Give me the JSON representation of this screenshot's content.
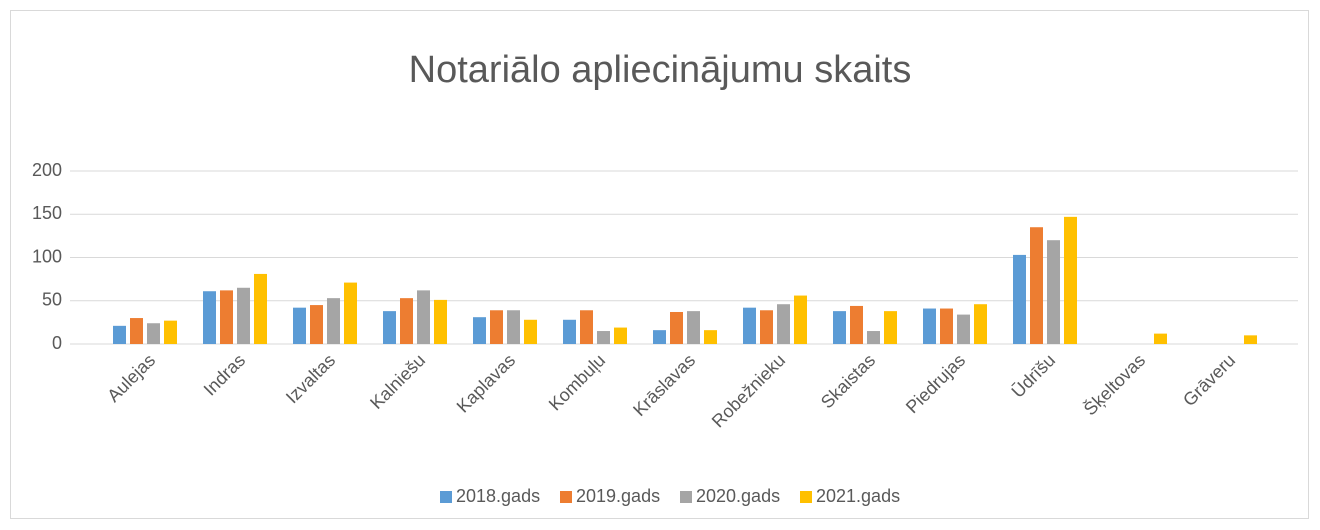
{
  "chart_data": {
    "type": "bar",
    "title": "Notariālo apliecinājumu skaits",
    "categories": [
      "Aulejas",
      "Indras",
      "Izvaltas",
      "Kalniešu",
      "Kaplavas",
      "Kombuļu",
      "Krāslavas",
      "Robežnieku",
      "Skaistas",
      "Piedrujas",
      "Ūdrīšu",
      "Šķeltovas",
      "Grāveru"
    ],
    "series": [
      {
        "name": "2018.gads",
        "color": "#5b9bd5",
        "values": [
          21,
          61,
          42,
          38,
          31,
          28,
          16,
          42,
          38,
          41,
          103,
          null,
          null
        ]
      },
      {
        "name": "2019.gads",
        "color": "#ed7d31",
        "values": [
          30,
          62,
          45,
          53,
          39,
          39,
          37,
          39,
          44,
          41,
          135,
          null,
          null
        ]
      },
      {
        "name": "2020.gads",
        "color": "#a5a5a5",
        "values": [
          24,
          65,
          53,
          62,
          39,
          15,
          38,
          46,
          15,
          34,
          120,
          null,
          null
        ]
      },
      {
        "name": "2021.gads",
        "color": "#ffc000",
        "values": [
          27,
          81,
          71,
          51,
          28,
          19,
          16,
          56,
          38,
          46,
          147,
          12,
          10
        ]
      }
    ],
    "ylim": [
      0,
      200
    ],
    "yticks": [
      0,
      50,
      100,
      150,
      200
    ],
    "grid": true,
    "legend": "bottom"
  }
}
